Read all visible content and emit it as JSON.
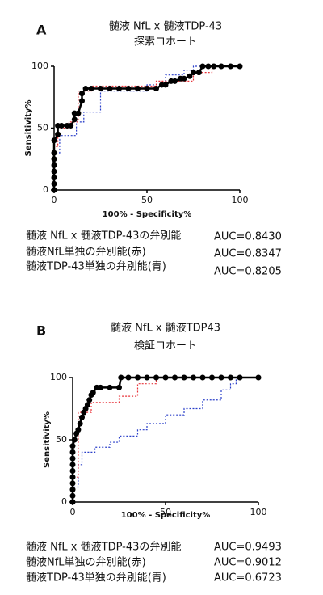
{
  "chart_data": [
    {
      "type": "line",
      "panel": "A",
      "title": "髄液 NfL x 髄液TDP-43",
      "subtitle": "探索コホート",
      "xlabel": "100% - Specificity%",
      "ylabel": "Sensitivity%",
      "xlim": [
        0,
        100
      ],
      "ylim": [
        0,
        100
      ],
      "xticks": [
        0,
        50,
        100
      ],
      "yticks": [
        0,
        50,
        100
      ],
      "series": [
        {
          "name": "髄液 NfL x 髄液TDP-43の弁別能",
          "auc": "AUC=0.8430",
          "color": "#000000",
          "style": "solid",
          "markers": true,
          "x": [
            0,
            0,
            0,
            0,
            0,
            0,
            0,
            0,
            2,
            2,
            4,
            7,
            9,
            11,
            11,
            13,
            15,
            15,
            17,
            20,
            25,
            30,
            35,
            40,
            45,
            50,
            55,
            58,
            60,
            63,
            65,
            68,
            70,
            73,
            75,
            78,
            80,
            83,
            86,
            90,
            95,
            100
          ],
          "values": [
            0,
            5,
            10,
            15,
            20,
            25,
            30,
            40,
            45,
            52,
            52,
            52,
            52,
            57,
            62,
            62,
            72,
            78,
            82,
            82,
            82,
            82,
            82,
            82,
            82,
            82,
            82,
            85,
            85,
            88,
            88,
            90,
            90,
            92,
            95,
            95,
            100,
            100,
            100,
            100,
            100,
            100
          ]
        },
        {
          "name": "髄液NfL単独の弁別能(赤)",
          "auc": "AUC=0.8347",
          "color": "#e8333a",
          "style": "dotted",
          "markers": false,
          "x": [
            0,
            0,
            2,
            2,
            8,
            8,
            13,
            13,
            20,
            20,
            55,
            55,
            75,
            75,
            85,
            85,
            100
          ],
          "values": [
            0,
            35,
            35,
            50,
            50,
            55,
            55,
            80,
            80,
            84,
            84,
            88,
            88,
            95,
            95,
            100,
            100
          ]
        },
        {
          "name": "髄液TDP-43単独の弁別能(青)",
          "auc": "AUC=0.8205",
          "color": "#2a3fc9",
          "style": "dotted",
          "markers": false,
          "x": [
            0,
            0,
            3,
            3,
            12,
            12,
            16,
            16,
            25,
            25,
            50,
            50,
            60,
            60,
            70,
            70,
            75,
            75,
            100
          ],
          "values": [
            0,
            30,
            30,
            44,
            44,
            55,
            55,
            63,
            63,
            80,
            80,
            85,
            85,
            93,
            93,
            97,
            97,
            100,
            100
          ]
        }
      ]
    },
    {
      "type": "line",
      "panel": "B",
      "title": "髄液 NfL x 髄液TDP43",
      "subtitle": "検証コホート",
      "xlabel": "100% - Specificity%",
      "ylabel": "Sensitivity%",
      "xlim": [
        0,
        100
      ],
      "ylim": [
        0,
        100
      ],
      "xticks": [
        0,
        50,
        100
      ],
      "yticks": [
        0,
        50,
        100
      ],
      "series": [
        {
          "name": "髄液 NfL x 髄液TDP-43の弁別能",
          "auc": "AUC=0.9493",
          "color": "#000000",
          "style": "solid",
          "markers": true,
          "x": [
            0,
            0,
            0,
            0,
            0,
            0,
            0,
            0,
            0,
            0,
            1,
            2,
            3,
            4,
            5,
            6,
            7,
            8,
            9,
            10,
            11,
            13,
            15,
            20,
            25,
            26,
            30,
            35,
            40,
            45,
            50,
            55,
            60,
            65,
            70,
            75,
            80,
            85,
            90,
            100
          ],
          "values": [
            0,
            5,
            10,
            15,
            20,
            25,
            30,
            35,
            40,
            45,
            50,
            55,
            58,
            63,
            68,
            72,
            75,
            78,
            82,
            86,
            88,
            92,
            92,
            92,
            92,
            100,
            100,
            100,
            100,
            100,
            100,
            100,
            100,
            100,
            100,
            100,
            100,
            100,
            100,
            100
          ]
        },
        {
          "name": "髄液NfL単独の弁別能(赤)",
          "auc": "AUC=0.9012",
          "color": "#e8333a",
          "style": "dotted",
          "markers": false,
          "x": [
            0,
            0,
            3,
            3,
            10,
            10,
            25,
            25,
            35,
            35,
            45,
            45,
            100
          ],
          "values": [
            0,
            20,
            20,
            72,
            72,
            80,
            80,
            85,
            85,
            95,
            95,
            100,
            100
          ]
        },
        {
          "name": "髄液TDP-43単独の弁別能(青)",
          "auc": "AUC=0.6723",
          "color": "#2a3fc9",
          "style": "dotted",
          "markers": false,
          "x": [
            0,
            0,
            3,
            3,
            5,
            5,
            12,
            12,
            20,
            20,
            25,
            25,
            35,
            35,
            40,
            40,
            50,
            50,
            60,
            60,
            70,
            70,
            80,
            80,
            85,
            85,
            88,
            88,
            100
          ],
          "values": [
            0,
            12,
            12,
            30,
            30,
            40,
            40,
            44,
            44,
            48,
            48,
            53,
            53,
            58,
            58,
            63,
            63,
            70,
            70,
            75,
            75,
            82,
            82,
            90,
            90,
            95,
            95,
            100,
            100
          ]
        }
      ]
    }
  ]
}
